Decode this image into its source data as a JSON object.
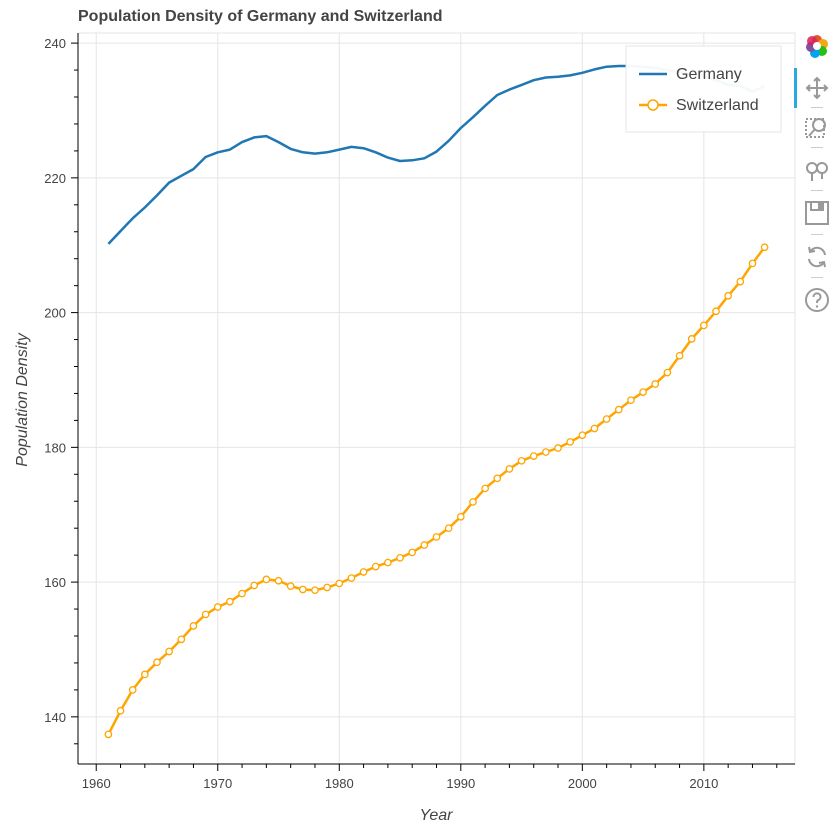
{
  "chart_data": {
    "type": "line",
    "title": "Population Density of Germany and Switzerland",
    "xlabel": "Year",
    "ylabel": "Population Density",
    "xlim": [
      1958.5,
      2017.5
    ],
    "ylim": [
      133,
      241.5
    ],
    "xticks": [
      1960,
      1970,
      1980,
      1990,
      2000,
      2010
    ],
    "yticks": [
      140,
      160,
      180,
      200,
      220,
      240
    ],
    "grid": true,
    "legend": "top-right",
    "series": [
      {
        "name": "Germany",
        "color": "#1f77b4",
        "markers": false,
        "x": [
          1961,
          1962,
          1963,
          1964,
          1965,
          1966,
          1967,
          1968,
          1969,
          1970,
          1971,
          1972,
          1973,
          1974,
          1975,
          1976,
          1977,
          1978,
          1979,
          1980,
          1981,
          1982,
          1983,
          1984,
          1985,
          1986,
          1987,
          1988,
          1989,
          1990,
          1991,
          1992,
          1993,
          1994,
          1995,
          1996,
          1997,
          1998,
          1999,
          2000,
          2001,
          2002,
          2003,
          2004,
          2005,
          2006,
          2007,
          2008,
          2009,
          2010,
          2011,
          2012,
          2013,
          2014,
          2015
        ],
        "values": [
          210.2,
          212.1,
          214.0,
          215.6,
          217.4,
          219.3,
          220.3,
          221.3,
          223.1,
          223.8,
          224.2,
          225.3,
          226.0,
          226.2,
          225.3,
          224.3,
          223.8,
          223.6,
          223.8,
          224.2,
          224.6,
          224.4,
          223.8,
          223.0,
          222.5,
          222.6,
          222.9,
          223.9,
          225.5,
          227.4,
          229.0,
          230.7,
          232.3,
          233.1,
          233.8,
          234.5,
          234.9,
          235.0,
          235.2,
          235.6,
          236.1,
          236.5,
          236.6,
          236.6,
          236.5,
          236.3,
          236.0,
          235.7,
          235.3,
          235.1,
          234.5,
          233.8,
          233.6,
          232.8,
          233.6
        ]
      },
      {
        "name": "Switzerland",
        "color": "#ffa500",
        "markers": true,
        "x": [
          1961,
          1962,
          1963,
          1964,
          1965,
          1966,
          1967,
          1968,
          1969,
          1970,
          1971,
          1972,
          1973,
          1974,
          1975,
          1976,
          1977,
          1978,
          1979,
          1980,
          1981,
          1982,
          1983,
          1984,
          1985,
          1986,
          1987,
          1988,
          1989,
          1990,
          1991,
          1992,
          1993,
          1994,
          1995,
          1996,
          1997,
          1998,
          1999,
          2000,
          2001,
          2002,
          2003,
          2004,
          2005,
          2006,
          2007,
          2008,
          2009,
          2010,
          2011,
          2012,
          2013,
          2014,
          2015
        ],
        "values": [
          137.4,
          140.9,
          144.0,
          146.3,
          148.1,
          149.7,
          151.5,
          153.5,
          155.2,
          156.3,
          157.1,
          158.3,
          159.5,
          160.4,
          160.2,
          159.4,
          158.9,
          158.8,
          159.2,
          159.8,
          160.6,
          161.5,
          162.3,
          162.9,
          163.6,
          164.4,
          165.5,
          166.7,
          168.0,
          169.7,
          171.9,
          173.9,
          175.4,
          176.8,
          178.0,
          178.7,
          179.3,
          179.9,
          180.8,
          181.8,
          182.8,
          184.2,
          185.6,
          187.0,
          188.2,
          189.4,
          191.1,
          193.6,
          196.1,
          198.1,
          200.2,
          202.5,
          204.6,
          207.3,
          209.7
        ]
      }
    ]
  },
  "toolbar": {
    "tools": [
      "bokeh-logo-icon",
      "pan-icon",
      "box-zoom-icon",
      "wheel-zoom-icon",
      "save-icon",
      "reset-icon",
      "help-icon"
    ]
  }
}
